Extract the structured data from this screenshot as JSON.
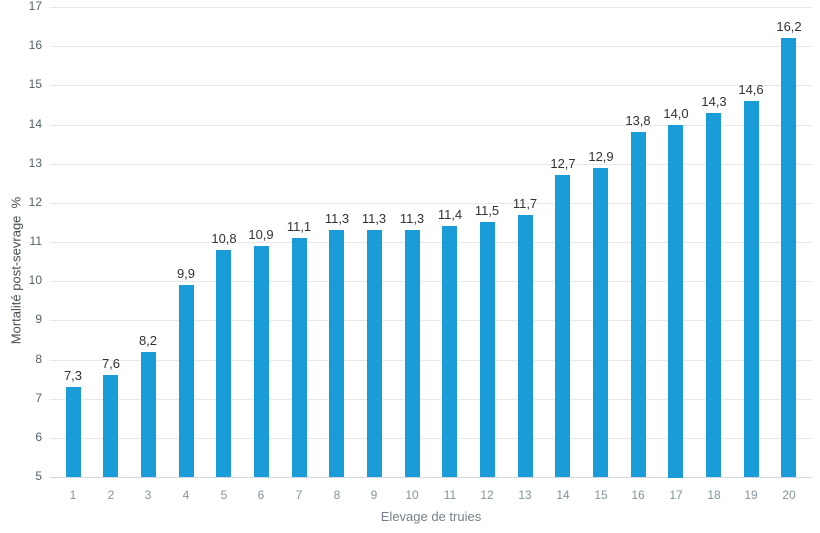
{
  "chart_data": {
    "type": "bar",
    "title": "",
    "xlabel": "Elevage de truies",
    "ylabel": "Mortalité post-sevrage  %",
    "categories": [
      "1",
      "2",
      "3",
      "4",
      "5",
      "6",
      "7",
      "8",
      "9",
      "10",
      "11",
      "12",
      "13",
      "14",
      "15",
      "16",
      "17",
      "18",
      "19",
      "20"
    ],
    "values": [
      7.3,
      7.6,
      8.2,
      9.9,
      10.8,
      10.9,
      11.1,
      11.3,
      11.3,
      11.3,
      11.4,
      11.5,
      11.7,
      12.7,
      12.9,
      13.8,
      14.0,
      14.3,
      14.6,
      16.2
    ],
    "value_labels": [
      "7,3",
      "7,6",
      "8,2",
      "9,9",
      "10,8",
      "10,9",
      "11,1",
      "11,3",
      "11,3",
      "11,3",
      "11,4",
      "11,5",
      "11,7",
      "12,7",
      "12,9",
      "13,8",
      "14,0",
      "14,3",
      "14,6",
      "16,2"
    ],
    "ylim": [
      5,
      17
    ],
    "yticks": [
      5,
      6,
      7,
      8,
      9,
      10,
      11,
      12,
      13,
      14,
      15,
      16,
      17
    ],
    "grid": true,
    "legend_position": "none"
  },
  "colors": {
    "bar": "#1a9cd8",
    "gridline": "#e8e8e8",
    "axis_line": "#d6d9db",
    "ytick_text": "#55616b",
    "xtick_text": "#8494a0",
    "data_label_text": "#333333",
    "x_title_text": "#75808a",
    "y_title_text": "#474e54",
    "background": "#ffffff"
  }
}
